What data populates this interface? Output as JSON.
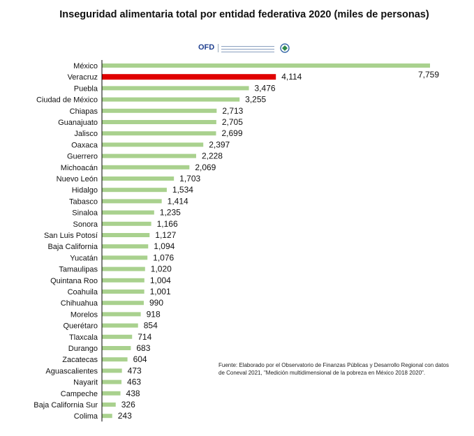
{
  "chart_data": {
    "type": "bar",
    "orientation": "horizontal",
    "title": "Inseguridad alimentaria total por entidad federativa 2020 (miles de personas)",
    "categories": [
      "México",
      "Veracruz",
      "Puebla",
      "Ciudad de México",
      "Chiapas",
      "Guanajuato",
      "Jalisco",
      "Oaxaca",
      "Guerrero",
      "Michoacán",
      "Nuevo León",
      "Hidalgo",
      "Tabasco",
      "Sinaloa",
      "Sonora",
      "San Luis Potosí",
      "Baja California",
      "Yucatán",
      "Tamaulipas",
      "Quintana Roo",
      "Coahuila",
      "Chihuahua",
      "Morelos",
      "Querétaro",
      "Tlaxcala",
      "Durango",
      "Zacatecas",
      "Aguascalientes",
      "Nayarit",
      "Campeche",
      "Baja California Sur",
      "Colima"
    ],
    "values": [
      7759,
      4114,
      3476,
      3255,
      2713,
      2705,
      2699,
      2397,
      2228,
      2069,
      1703,
      1534,
      1414,
      1235,
      1166,
      1127,
      1094,
      1076,
      1020,
      1004,
      1001,
      990,
      918,
      854,
      714,
      683,
      604,
      473,
      463,
      438,
      326,
      243
    ],
    "value_labels": [
      "7,759",
      "4,114",
      "3,476",
      "3,255",
      "2,713",
      "2,705",
      "2,699",
      "2,397",
      "2,228",
      "2,069",
      "1,703",
      "1,534",
      "1,414",
      "1,235",
      "1,166",
      "1,127",
      "1,094",
      "1,076",
      "1,020",
      "1,004",
      "1,001",
      "990",
      "918",
      "854",
      "714",
      "683",
      "604",
      "473",
      "463",
      "438",
      "326",
      "243"
    ],
    "highlight_category": "Veracruz",
    "colors": {
      "bar": "#a9d18e",
      "highlight": "#e00000",
      "axis": "#000000"
    },
    "xlim": [
      0,
      7759
    ],
    "grid": false,
    "legend": "none"
  },
  "logo": {
    "text": "OFD"
  },
  "source": "Fuente: Elaborado por el Observatorio de Finanzas Públicas y Desarrollo Regional con datos de Coneval 2021, \"Medición multidimensional de la pobreza en México 2018 2020\"."
}
